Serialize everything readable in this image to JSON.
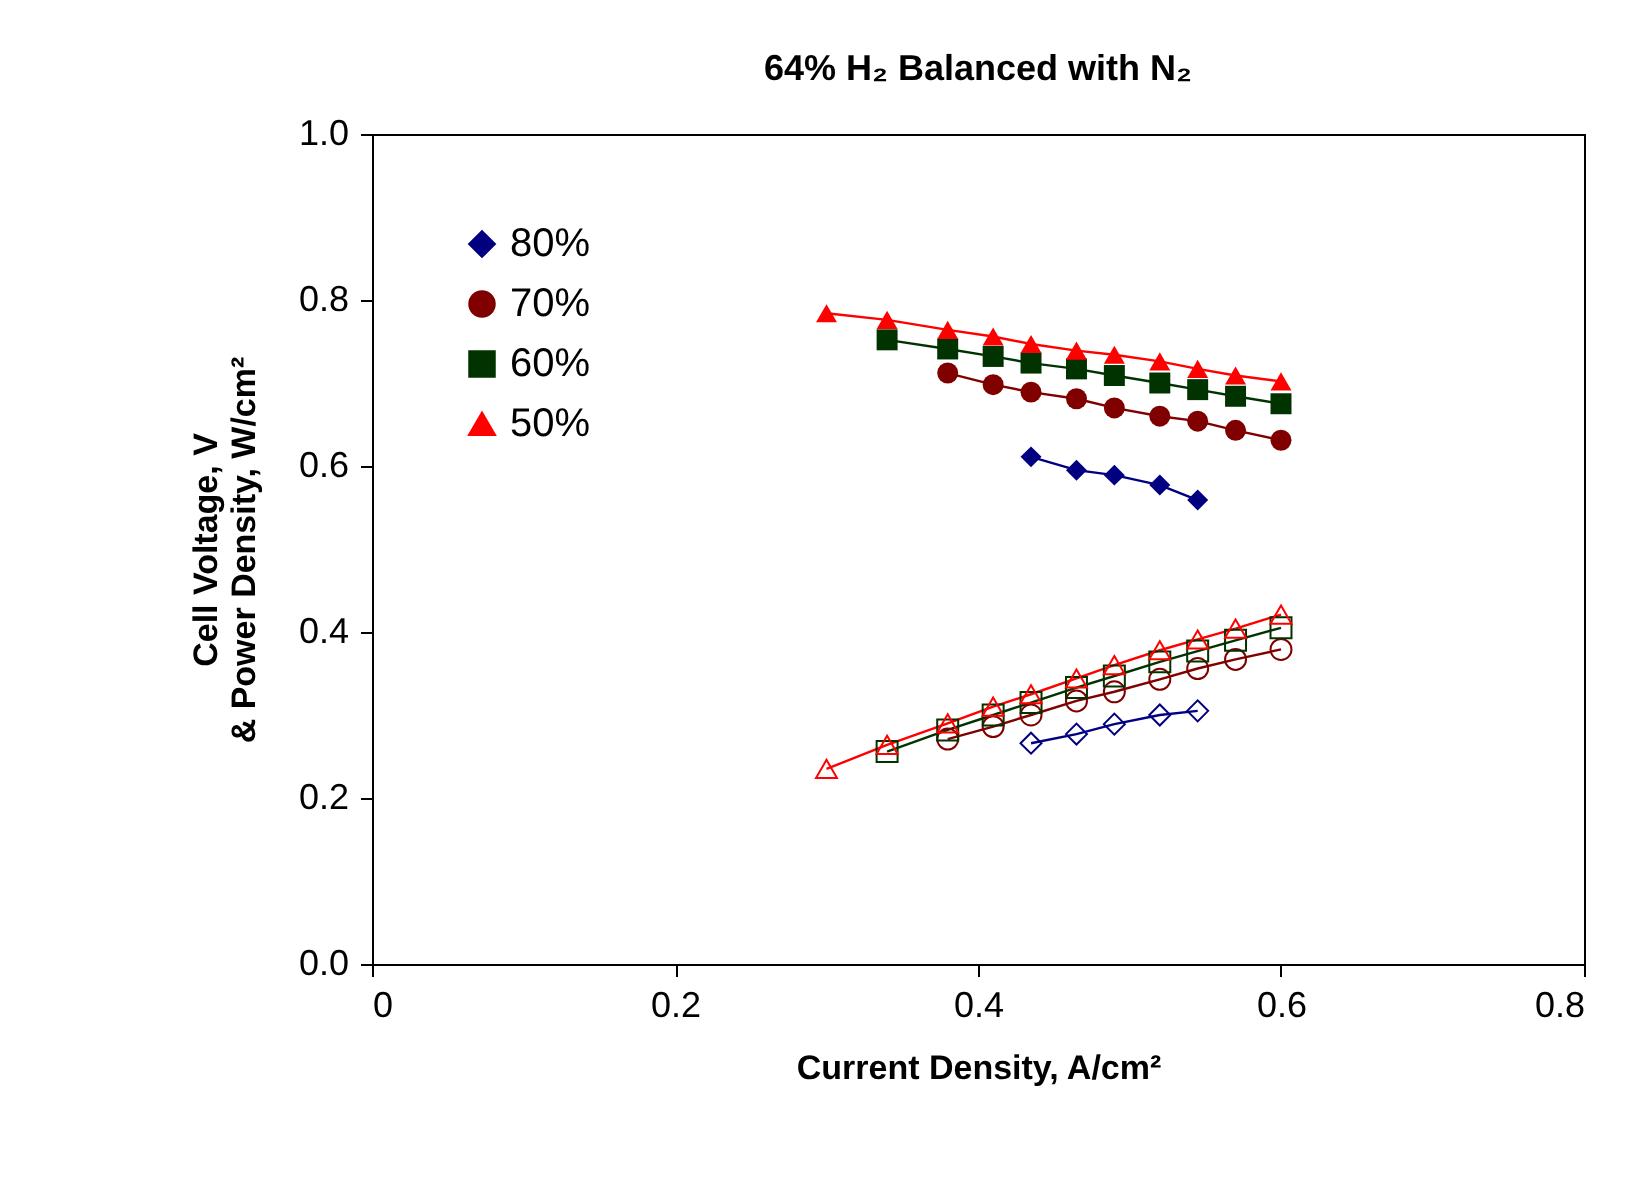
{
  "chart_data": {
    "type": "line",
    "title": "64% H₂ Balanced with N₂",
    "xlabel": "Current Density, A/cm²",
    "ylabel": [
      "Cell Voltage, V",
      "& Power Density, W/cm²"
    ],
    "xlim": [
      0,
      0.8
    ],
    "xticks": [
      0,
      0.2,
      0.4,
      0.6,
      0.8
    ],
    "ylim": [
      0,
      1
    ],
    "yticks": [
      {
        "value": 0,
        "label": "0.0"
      },
      0.2,
      0.4,
      0.6,
      0.8,
      {
        "value": 1,
        "label": "1.0"
      }
    ],
    "legend": "top left",
    "grid": false,
    "series": [
      {
        "name": "80%",
        "color": "#000080",
        "marker": "diamond",
        "x": [
          0.435,
          0.465,
          0.49,
          0.52,
          0.545
        ],
        "values": [
          0.611,
          0.595,
          0.589,
          0.577,
          0.559
        ]
      },
      {
        "name": "70%",
        "color": "#800000",
        "marker": "circle",
        "x": [
          0.38,
          0.41,
          0.435,
          0.465,
          0.49,
          0.52,
          0.545,
          0.57,
          0.6
        ],
        "values": [
          0.712,
          0.698,
          0.689,
          0.681,
          0.67,
          0.66,
          0.654,
          0.643,
          0.631
        ]
      },
      {
        "name": "60%",
        "color": "#003300",
        "marker": "square",
        "x": [
          0.34,
          0.38,
          0.41,
          0.435,
          0.465,
          0.49,
          0.52,
          0.545,
          0.57,
          0.6
        ],
        "values": [
          0.752,
          0.741,
          0.732,
          0.724,
          0.717,
          0.709,
          0.7,
          0.692,
          0.684,
          0.675
        ]
      },
      {
        "name": "50%",
        "color": "#ff0000",
        "marker": "triangle",
        "x": [
          0.3,
          0.34,
          0.38,
          0.41,
          0.435,
          0.465,
          0.49,
          0.52,
          0.545,
          0.57,
          0.6
        ],
        "values": [
          0.784,
          0.776,
          0.764,
          0.756,
          0.747,
          0.739,
          0.734,
          0.726,
          0.717,
          0.709,
          0.702
        ]
      },
      {
        "color": "#000080",
        "marker": "diamond",
        "x": [
          0.435,
          0.465,
          0.49,
          0.52,
          0.545
        ],
        "values": [
          0.266,
          0.277,
          0.289,
          0.3,
          0.305
        ]
      },
      {
        "color": "#800000",
        "marker": "circle",
        "x": [
          0.38,
          0.41,
          0.435,
          0.465,
          0.49,
          0.52,
          0.545,
          0.57,
          0.6
        ],
        "values": [
          0.271,
          0.286,
          0.3,
          0.317,
          0.328,
          0.343,
          0.356,
          0.367,
          0.379
        ]
      },
      {
        "color": "#003300",
        "marker": "square",
        "x": [
          0.34,
          0.38,
          0.41,
          0.435,
          0.465,
          0.49,
          0.52,
          0.545,
          0.57,
          0.6
        ],
        "values": [
          0.256,
          0.282,
          0.3,
          0.315,
          0.333,
          0.347,
          0.364,
          0.377,
          0.39,
          0.405
        ]
      },
      {
        "color": "#ff0000",
        "marker": "triangle",
        "x": [
          0.3,
          0.34,
          0.38,
          0.41,
          0.435,
          0.465,
          0.49,
          0.52,
          0.545,
          0.57,
          0.6
        ],
        "values": [
          0.235,
          0.264,
          0.29,
          0.31,
          0.325,
          0.344,
          0.36,
          0.378,
          0.391,
          0.404,
          0.421
        ]
      }
    ]
  }
}
